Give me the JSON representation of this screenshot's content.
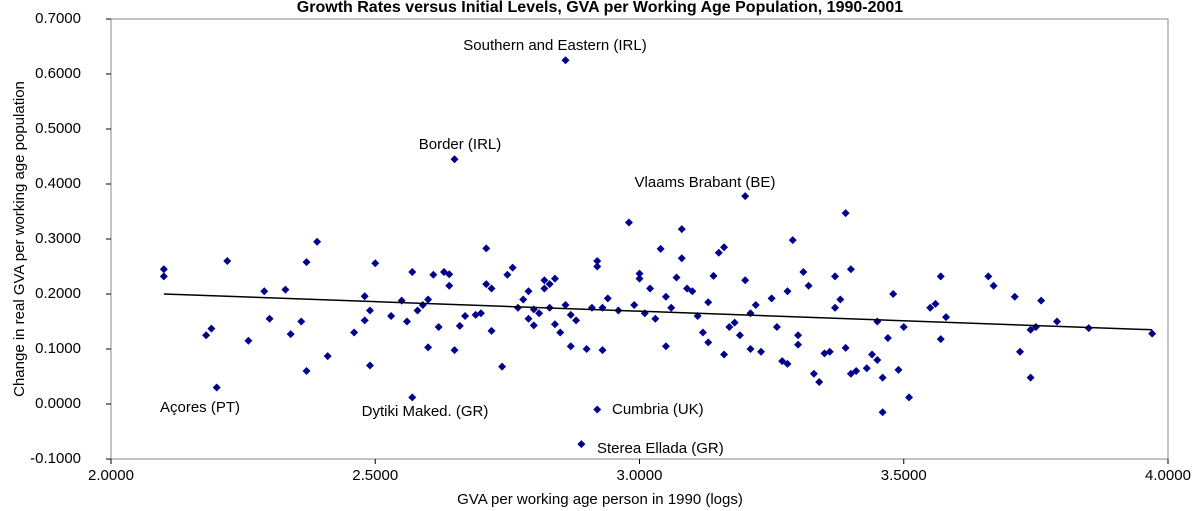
{
  "chart_data": {
    "type": "scatter",
    "title": "Growth Rates versus Initial Levels, GVA per Working Age Population, 1990-2001",
    "x_label": "GVA per working age person in 1990 (logs)",
    "y_label": "Change in real GVA per working age population",
    "color": "#00008b",
    "xlim": [
      2.0,
      4.0
    ],
    "xticks": [
      {
        "value": 2.0,
        "label": "2.0000"
      },
      {
        "value": 2.5,
        "label": "2.5000"
      },
      {
        "value": 3.0,
        "label": "3.0000"
      },
      {
        "value": 3.5,
        "label": "3.5000"
      },
      {
        "value": 4.0,
        "label": "4.0000"
      }
    ],
    "ylim": [
      -0.1,
      0.7
    ],
    "yticks": [
      {
        "value": -0.1,
        "label": "-0.1000"
      },
      {
        "value": 0.0,
        "label": "0.0000"
      },
      {
        "value": 0.1,
        "label": "0.1000"
      },
      {
        "value": 0.2,
        "label": "0.2000"
      },
      {
        "value": 0.3,
        "label": "0.3000"
      },
      {
        "value": 0.4,
        "label": "0.4000"
      },
      {
        "value": 0.5,
        "label": "0.5000"
      },
      {
        "value": 0.6,
        "label": "0.6000"
      },
      {
        "value": 0.7,
        "label": "0.7000"
      }
    ],
    "x": [
      2.1,
      2.1,
      2.18,
      2.19,
      2.2,
      2.22,
      2.26,
      2.29,
      2.3,
      2.33,
      2.34,
      2.36,
      2.37,
      2.37,
      2.39,
      2.41,
      2.46,
      2.48,
      2.48,
      2.49,
      2.5,
      2.49,
      2.53,
      2.55,
      2.56,
      2.57,
      2.57,
      2.58,
      2.59,
      2.6,
      2.6,
      2.61,
      2.62,
      2.63,
      2.64,
      2.64,
      2.65,
      2.65,
      2.66,
      2.67,
      2.69,
      2.7,
      2.71,
      2.71,
      2.72,
      2.72,
      2.74,
      2.75,
      2.76,
      2.77,
      2.78,
      2.79,
      2.79,
      2.8,
      2.8,
      2.81,
      2.82,
      2.82,
      2.83,
      2.83,
      2.84,
      2.84,
      2.85,
      2.86,
      2.86,
      2.87,
      2.87,
      2.88,
      2.89,
      2.9,
      2.91,
      2.92,
      2.92,
      2.92,
      2.93,
      2.93,
      2.94,
      2.96,
      2.98,
      2.99,
      3.0,
      3.0,
      3.01,
      3.02,
      3.03,
      3.04,
      3.05,
      3.05,
      3.06,
      3.07,
      3.08,
      3.08,
      3.09,
      3.1,
      3.11,
      3.12,
      3.13,
      3.13,
      3.14,
      3.15,
      3.2,
      3.16,
      3.16,
      3.17,
      3.18,
      3.19,
      3.2,
      3.21,
      3.21,
      3.22,
      3.23,
      3.25,
      3.26,
      3.27,
      3.28,
      3.28,
      3.29,
      3.3,
      3.3,
      3.31,
      3.32,
      3.33,
      3.34,
      3.35,
      3.36,
      3.37,
      3.37,
      3.38,
      3.39,
      3.39,
      3.4,
      3.4,
      3.41,
      3.43,
      3.44,
      3.45,
      3.45,
      3.46,
      3.46,
      3.47,
      3.48,
      3.49,
      3.5,
      3.51,
      3.55,
      3.56,
      3.57,
      3.57,
      3.58,
      3.66,
      3.67,
      3.71,
      3.72,
      3.74,
      3.75,
      3.76,
      3.79,
      3.74,
      3.85,
      3.97
    ],
    "values": [
      0.245,
      0.232,
      0.125,
      0.137,
      0.03,
      0.26,
      0.115,
      0.205,
      0.155,
      0.208,
      0.127,
      0.15,
      0.06,
      0.258,
      0.295,
      0.087,
      0.13,
      0.196,
      0.152,
      0.07,
      0.256,
      0.17,
      0.16,
      0.188,
      0.15,
      0.012,
      0.24,
      0.17,
      0.18,
      0.103,
      0.19,
      0.235,
      0.14,
      0.24,
      0.236,
      0.215,
      0.445,
      0.098,
      0.142,
      0.16,
      0.162,
      0.165,
      0.283,
      0.218,
      0.133,
      0.21,
      0.068,
      0.235,
      0.248,
      0.175,
      0.19,
      0.205,
      0.155,
      0.172,
      0.143,
      0.165,
      0.225,
      0.21,
      0.218,
      0.175,
      0.228,
      0.145,
      0.13,
      0.625,
      0.18,
      0.105,
      0.162,
      0.152,
      -0.073,
      0.1,
      0.175,
      0.25,
      0.26,
      -0.01,
      0.098,
      0.175,
      0.192,
      0.17,
      0.33,
      0.18,
      0.237,
      0.228,
      0.165,
      0.21,
      0.155,
      0.282,
      0.105,
      0.195,
      0.175,
      0.23,
      0.265,
      0.318,
      0.21,
      0.205,
      0.16,
      0.13,
      0.185,
      0.112,
      0.233,
      0.275,
      0.378,
      0.285,
      0.09,
      0.14,
      0.148,
      0.125,
      0.225,
      0.165,
      0.1,
      0.18,
      0.095,
      0.192,
      0.14,
      0.078,
      0.205,
      0.073,
      0.298,
      0.125,
      0.108,
      0.24,
      0.215,
      0.055,
      0.04,
      0.092,
      0.095,
      0.175,
      0.232,
      0.19,
      0.102,
      0.347,
      0.245,
      0.055,
      0.06,
      0.065,
      0.09,
      0.08,
      0.15,
      -0.015,
      0.048,
      0.12,
      0.2,
      0.062,
      0.14,
      0.012,
      0.175,
      0.182,
      0.232,
      0.118,
      0.158,
      0.232,
      0.215,
      0.195,
      0.095,
      0.135,
      0.14,
      0.188,
      0.15,
      0.048,
      0.138,
      0.128
    ],
    "trendline": {
      "x": [
        2.1,
        3.97
      ],
      "y": [
        0.2,
        0.135
      ]
    },
    "annotations": [
      "Southern and Eastern (IRL)",
      "Border (IRL)",
      "Vlaams Brabant (BE)",
      "Açores (PT)",
      "Dytiki Maked. (GR)",
      "Cumbria (UK)",
      "Sterea Ellada (GR)"
    ]
  }
}
